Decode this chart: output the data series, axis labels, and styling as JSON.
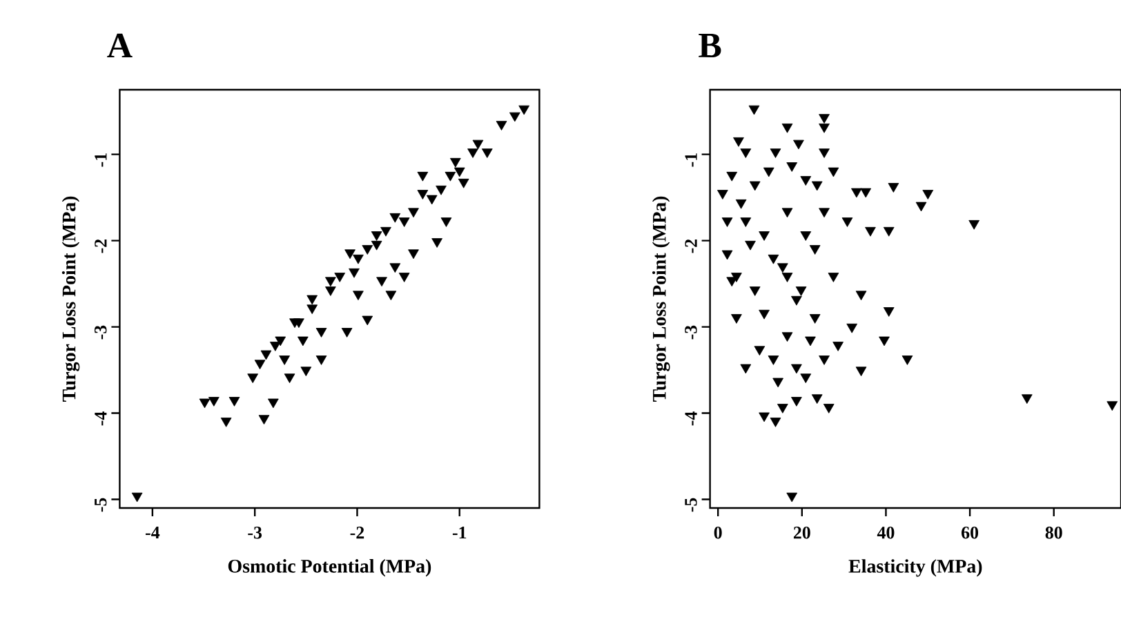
{
  "chart_data": [
    {
      "type": "scatter",
      "title": "A",
      "xlabel": "Osmotic Potential (MPa)",
      "ylabel": "Turgor Loss Point (MPa)",
      "color": "#000000",
      "marker": "triangle",
      "xlim": [
        -4.32,
        -0.22
      ],
      "ylim": [
        -5.1,
        -0.25
      ],
      "xticks": [
        -4,
        -3,
        -2,
        -1
      ],
      "yticks": [
        -5,
        -4,
        -3,
        -2,
        -1
      ],
      "x": [
        -4.15,
        -3.49,
        -3.4,
        -3.28,
        -3.2,
        -2.91,
        -2.82,
        -3.02,
        -2.95,
        -2.8,
        -2.66,
        -2.5,
        -2.35,
        -2.61,
        -2.44,
        -2.26,
        -2.1,
        -1.9,
        -2.03,
        -2.07,
        -1.81,
        -1.63,
        -1.54,
        -1.67,
        -1.45,
        -1.22,
        -1.13,
        -1.36,
        -1.09,
        -0.96,
        -0.87,
        -0.73,
        -0.59,
        -0.37,
        -0.46,
        -2.44,
        -2.26,
        -1.99,
        -1.81,
        -1.54,
        -1.27,
        -1.0,
        -2.57,
        -2.75,
        -2.89,
        -2.17,
        -1.9,
        -1.72,
        -1.45,
        -1.18,
        -1.99,
        -1.76,
        -2.35,
        -2.53,
        -2.71,
        -1.63,
        -1.36,
        -1.04,
        -0.82
      ],
      "values": [
        -4.96,
        -3.87,
        -3.85,
        -4.09,
        -3.85,
        -4.06,
        -3.87,
        -3.58,
        -3.42,
        -3.21,
        -3.58,
        -3.5,
        -3.37,
        -2.94,
        -2.78,
        -2.57,
        -3.05,
        -2.91,
        -2.36,
        -2.14,
        -1.93,
        -2.3,
        -2.41,
        -2.62,
        -2.14,
        -2.01,
        -1.77,
        -1.45,
        -1.24,
        -1.32,
        -0.97,
        -0.97,
        -0.65,
        -0.47,
        -0.55,
        -2.67,
        -2.46,
        -2.2,
        -2.04,
        -1.77,
        -1.51,
        -1.19,
        -2.94,
        -3.15,
        -3.31,
        -2.41,
        -2.09,
        -1.88,
        -1.66,
        -1.4,
        -2.62,
        -2.46,
        -3.05,
        -3.15,
        -3.37,
        -1.72,
        -1.24,
        -1.08,
        -0.87
      ]
    },
    {
      "type": "scatter",
      "title": "B",
      "xlabel": "Elasticity (MPa)",
      "ylabel": "Turgor Loss Point (MPa)",
      "color": "#000000",
      "marker": "triangle",
      "xlim": [
        -1.9,
        96
      ],
      "ylim": [
        -5.1,
        -0.25
      ],
      "xticks": [
        0,
        20,
        40,
        60,
        80
      ],
      "yticks": [
        -5,
        -4,
        -3,
        -2,
        -1
      ],
      "x": [
        8.6,
        16.5,
        25.3,
        25.3,
        19.2,
        25.3,
        13.7,
        4.9,
        6.6,
        17.6,
        20.9,
        23.6,
        27.5,
        33.0,
        35.2,
        41.8,
        48.4,
        50.0,
        61.0,
        73.6,
        93.9,
        17.6,
        2.2,
        1.1,
        3.3,
        5.5,
        8.8,
        12.1,
        16.5,
        25.3,
        30.8,
        36.3,
        40.7,
        20.9,
        7.7,
        4.4,
        13.2,
        23.1,
        8.8,
        16.5,
        27.5,
        34.1,
        40.7,
        4.4,
        11.0,
        18.7,
        23.1,
        31.9,
        28.6,
        39.6,
        45.1,
        34.1,
        6.6,
        13.2,
        14.3,
        18.7,
        20.9,
        25.3,
        11.0,
        13.7,
        15.4,
        18.7,
        23.6,
        26.4,
        9.9,
        16.5,
        22.0,
        2.2,
        6.6,
        11.0,
        15.4,
        19.8,
        3.3
      ],
      "values": [
        -0.47,
        -0.68,
        -0.57,
        -0.68,
        -0.87,
        -0.97,
        -0.97,
        -0.84,
        -0.97,
        -1.13,
        -1.29,
        -1.35,
        -1.19,
        -1.43,
        -1.43,
        -1.37,
        -1.59,
        -1.45,
        -1.8,
        -3.82,
        -3.9,
        -4.96,
        -1.77,
        -1.45,
        -1.24,
        -1.56,
        -1.35,
        -1.19,
        -1.66,
        -1.66,
        -1.77,
        -1.88,
        -1.88,
        -1.93,
        -2.04,
        -2.41,
        -2.2,
        -2.09,
        -2.57,
        -2.41,
        -2.41,
        -2.62,
        -2.81,
        -2.89,
        -2.84,
        -2.68,
        -2.89,
        -3.0,
        -3.21,
        -3.15,
        -3.37,
        -3.5,
        -3.47,
        -3.37,
        -3.63,
        -3.47,
        -3.58,
        -3.37,
        -4.03,
        -4.09,
        -3.93,
        -3.85,
        -3.82,
        -3.93,
        -3.26,
        -3.1,
        -3.15,
        -2.15,
        -1.77,
        -1.93,
        -2.3,
        -2.57,
        -2.46
      ]
    }
  ]
}
